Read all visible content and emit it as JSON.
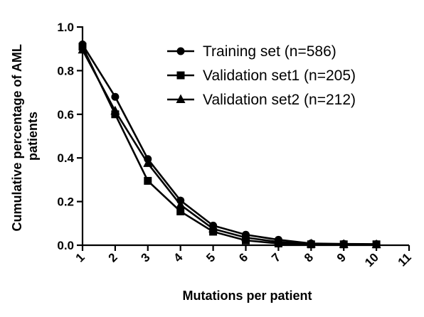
{
  "chart_data": {
    "type": "line",
    "title": "",
    "xlabel": "Mutations per patient",
    "ylabel": "Cumulative percentage of AML patients",
    "ylabel_lines": [
      "Cumulative percentage of AML",
      "patients"
    ],
    "x": [
      1,
      2,
      3,
      4,
      5,
      6,
      7,
      8,
      9,
      10,
      11
    ],
    "xlim": [
      1,
      11
    ],
    "ylim": [
      0,
      1.0
    ],
    "yticks": [
      "0.0",
      "0.2",
      "0.4",
      "0.6",
      "0.8",
      "1.0"
    ],
    "xticks": [
      "1",
      "2",
      "3",
      "4",
      "5",
      "6",
      "7",
      "8",
      "9",
      "10",
      "11"
    ],
    "grid": false,
    "legend_position": "top-right",
    "series": [
      {
        "name": "Training set (n=586)",
        "marker": "circle",
        "x": [
          1,
          2,
          3,
          4,
          5,
          6,
          7,
          8,
          9,
          10
        ],
        "values": [
          0.92,
          0.68,
          0.395,
          0.205,
          0.09,
          0.048,
          0.025,
          0.008,
          0.006,
          0.005
        ]
      },
      {
        "name": "Validation set1 (n=205)",
        "marker": "square",
        "x": [
          1,
          2,
          3,
          4,
          5,
          6,
          7,
          8,
          9,
          10
        ],
        "values": [
          0.91,
          0.6,
          0.295,
          0.155,
          0.062,
          0.022,
          0.008,
          0.004,
          0.004,
          0.004
        ]
      },
      {
        "name": "Validation set2 (n=212)",
        "marker": "triangle",
        "x": [
          1,
          2,
          3,
          4,
          5,
          6,
          7,
          8,
          9,
          10
        ],
        "values": [
          0.895,
          0.615,
          0.375,
          0.185,
          0.075,
          0.035,
          0.015,
          0.006,
          0.004,
          0.003
        ]
      }
    ]
  }
}
